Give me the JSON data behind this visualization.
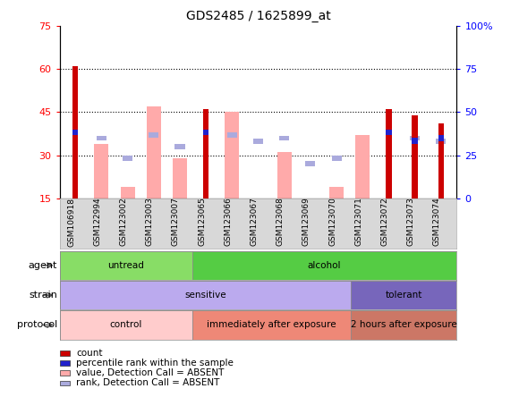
{
  "title": "GDS2485 / 1625899_at",
  "samples": [
    "GSM106918",
    "GSM122994",
    "GSM123002",
    "GSM123003",
    "GSM123007",
    "GSM123065",
    "GSM123066",
    "GSM123067",
    "GSM123068",
    "GSM123069",
    "GSM123070",
    "GSM123071",
    "GSM123072",
    "GSM123073",
    "GSM123074"
  ],
  "count_values": [
    61,
    0,
    0,
    0,
    0,
    46,
    0,
    0,
    0,
    0,
    0,
    0,
    46,
    44,
    41
  ],
  "percentile_values": [
    38,
    0,
    0,
    0,
    0,
    38,
    0,
    0,
    0,
    0,
    0,
    0,
    38,
    35,
    36
  ],
  "absent_value_bars": [
    0,
    34,
    19,
    47,
    29,
    0,
    45,
    0,
    31,
    0,
    19,
    37,
    0,
    0,
    0
  ],
  "absent_rank_bars": [
    0,
    36,
    29,
    37,
    33,
    0,
    37,
    35,
    36,
    27,
    29,
    0,
    0,
    36,
    35
  ],
  "ylim": [
    15,
    75
  ],
  "yticks_left": [
    15,
    30,
    45,
    60,
    75
  ],
  "agent_groups": [
    {
      "label": "untread",
      "start": 0,
      "end": 5,
      "color": "#88dd66"
    },
    {
      "label": "alcohol",
      "start": 5,
      "end": 15,
      "color": "#55cc44"
    }
  ],
  "strain_groups": [
    {
      "label": "sensitive",
      "start": 0,
      "end": 11,
      "color": "#bbaaee"
    },
    {
      "label": "tolerant",
      "start": 11,
      "end": 15,
      "color": "#7766bb"
    }
  ],
  "protocol_groups": [
    {
      "label": "control",
      "start": 0,
      "end": 5,
      "color": "#ffcccc"
    },
    {
      "label": "immediately after exposure",
      "start": 5,
      "end": 11,
      "color": "#ee8877"
    },
    {
      "label": "2 hours after exposure",
      "start": 11,
      "end": 15,
      "color": "#cc7766"
    }
  ],
  "legend_items": [
    {
      "label": "count",
      "color": "#cc0000"
    },
    {
      "label": "percentile rank within the sample",
      "color": "#2222cc"
    },
    {
      "label": "value, Detection Call = ABSENT",
      "color": "#ffaaaa"
    },
    {
      "label": "rank, Detection Call = ABSENT",
      "color": "#aaaadd"
    }
  ],
  "count_color": "#cc0000",
  "percentile_color": "#2222cc",
  "absent_value_color": "#ffaaaa",
  "absent_rank_color": "#aaaadd"
}
